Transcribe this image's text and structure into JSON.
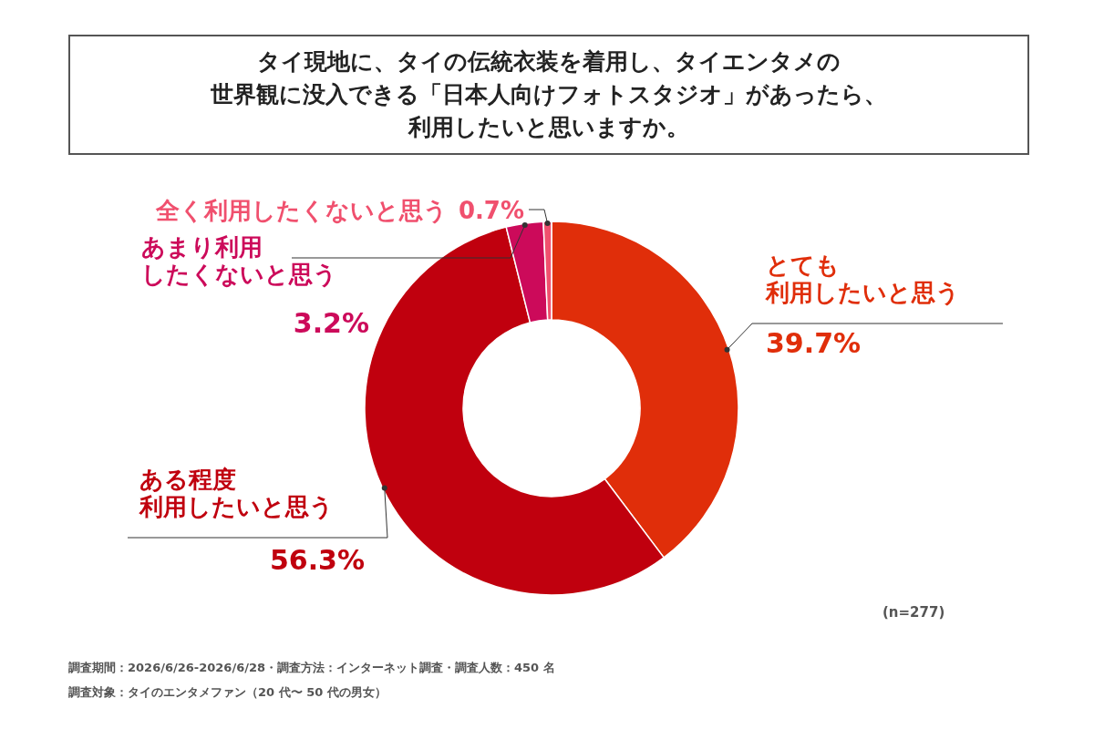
{
  "chart_data": {
    "type": "donut",
    "title": "タイ現地に、タイの伝統衣装を着用し、タイエンタメの世界観に没入できる「日本人向けフォトスタジオ」があったら、利用したいと思いますか。",
    "categories": [
      "とても利用したいと思う",
      "ある程度利用したいと思う",
      "あまり利用したくないと思う",
      "全く利用したくないと思う"
    ],
    "values": [
      39.7,
      56.3,
      3.2,
      0.7
    ],
    "colors": [
      "#e02e0a",
      "#c0000e",
      "#cc0a5a",
      "#f0506e"
    ],
    "value_labels": [
      "39.7%",
      "56.3%",
      "3.2%",
      "0.7%"
    ],
    "annotations": [
      "(n=277)",
      "調査期間：2026/6/26-2026/6/28・調査方法：インターネット調査・調査人数：450 名",
      "調査対象：タイのエンタメファン（20 代〜 50 代の男女）"
    ],
    "legend": false
  }
}
